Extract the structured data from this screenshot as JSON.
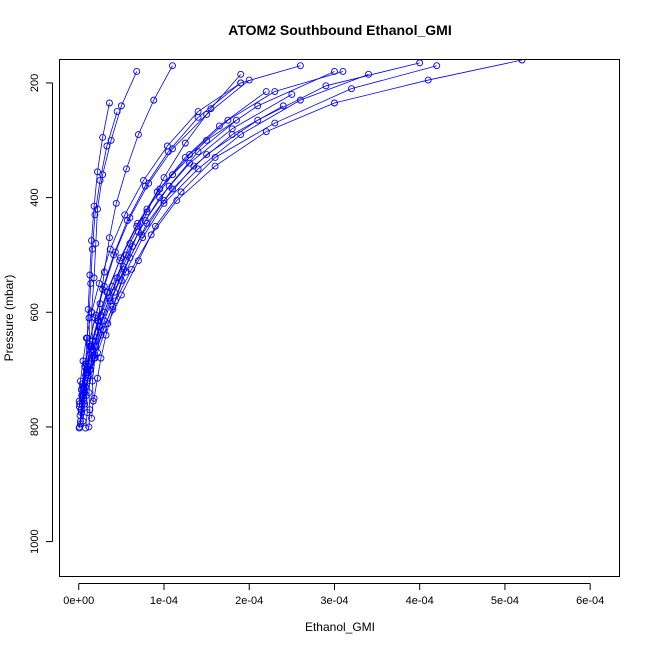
{
  "chart_data": {
    "type": "line",
    "title": "ATOM2 Southbound Ethanol_GMI",
    "xlabel": "Ethanol_GMI",
    "ylabel": "Pressure (mbar)",
    "xlim": [
      -2.2e-05,
      0.000635
    ],
    "ylim": [
      1060,
      160
    ],
    "y_reversed": true,
    "grid": false,
    "legend": "none",
    "color": "#0000ff",
    "marker": "open-circle",
    "x_ticks": [
      {
        "value": 0,
        "label": "0e+00"
      },
      {
        "value": 0.0001,
        "label": "1e-04"
      },
      {
        "value": 0.0002,
        "label": "2e-04"
      },
      {
        "value": 0.0003,
        "label": "3e-04"
      },
      {
        "value": 0.0004,
        "label": "4e-04"
      },
      {
        "value": 0.0005,
        "label": "5e-04"
      },
      {
        "value": 0.0006,
        "label": "6e-04"
      }
    ],
    "y_ticks": [
      {
        "value": 200,
        "label": "200"
      },
      {
        "value": 400,
        "label": "400"
      },
      {
        "value": 600,
        "label": "600"
      },
      {
        "value": 800,
        "label": "800"
      },
      {
        "value": 1000,
        "label": "1000"
      }
    ],
    "series": [
      {
        "x": [
          5e-07,
          3e-06,
          8e-06,
          1.4e-05,
          2e-05,
          3e-05,
          4.5e-05,
          6e-05,
          8e-05,
          0.00011,
          0.00015,
          0.00021,
          0.0003
        ],
        "y": [
          802,
          770,
          730,
          690,
          650,
          600,
          540,
          480,
          420,
          360,
          300,
          240,
          180
        ]
      },
      {
        "x": [
          1e-06,
          4e-06,
          1e-05,
          1.8e-05,
          2.6e-05,
          4e-05,
          5.5e-05,
          7.5e-05,
          0.0001,
          0.00014,
          0.00019,
          0.00026,
          0.00034
        ],
        "y": [
          800,
          760,
          720,
          680,
          640,
          590,
          530,
          470,
          410,
          350,
          290,
          230,
          185
        ]
      },
      {
        "x": [
          2e-06,
          6e-06,
          1.2e-05,
          2.2e-05,
          3.4e-05,
          5e-05,
          7e-05,
          9e-05,
          0.00012,
          0.00016,
          0.00023,
          0.00032,
          0.00042
        ],
        "y": [
          790,
          750,
          710,
          670,
          620,
          570,
          510,
          450,
          390,
          330,
          270,
          210,
          170
        ]
      },
      {
        "x": [
          1.5e-06,
          5e-06,
          9e-06,
          1.6e-05,
          2.4e-05,
          3.6e-05,
          5.2e-05,
          7e-05,
          9.5e-05,
          0.00013,
          0.00018,
          0.00025
        ],
        "y": [
          780,
          745,
          705,
          665,
          625,
          575,
          520,
          460,
          400,
          340,
          280,
          220
        ]
      },
      {
        "x": [
          3e-06,
          7e-06,
          1.3e-05,
          2e-05,
          3e-05,
          4.2e-05,
          6e-05,
          8e-05,
          0.00011,
          0.00015,
          0.00021,
          0.00029,
          0.0004
        ],
        "y": [
          775,
          740,
          700,
          660,
          615,
          565,
          505,
          445,
          385,
          325,
          265,
          205,
          165
        ]
      },
      {
        "x": [
          8e-07,
          3e-06,
          7e-06,
          1.2e-05,
          1.9e-05,
          2.8e-05,
          4.1e-05,
          5.7e-05,
          7.8e-05,
          0.000105,
          0.00014,
          0.00019
        ],
        "y": [
          765,
          735,
          695,
          655,
          610,
          560,
          500,
          440,
          380,
          320,
          260,
          200
        ]
      },
      {
        "x": [
          2e-06,
          6e-06,
          1.1e-05,
          1.9e-05,
          2.9e-05,
          4.3e-05,
          6.2e-05,
          8.5e-05,
          0.000115,
          0.00016,
          0.00022,
          0.0003,
          0.00041,
          0.00052
        ],
        "y": [
          795,
          755,
          715,
          675,
          630,
          580,
          525,
          465,
          405,
          345,
          285,
          235,
          195,
          160
        ]
      },
      {
        "x": [
          1e-06,
          4e-06,
          8e-06,
          1.3e-05,
          2e-05,
          3e-05,
          4.3e-05,
          6e-05,
          8.2e-05,
          0.00011,
          0.00015,
          0.0002
        ],
        "y": [
          760,
          725,
          690,
          650,
          605,
          555,
          495,
          435,
          375,
          315,
          255,
          195
        ]
      },
      {
        "x": [
          3.5e-06,
          8e-06,
          1.5e-05,
          2.5e-05,
          3.7e-05,
          5.3e-05,
          7.4e-05,
          0.0001,
          0.000135,
          0.00018,
          0.00024
        ],
        "y": [
          745,
          710,
          670,
          625,
          580,
          525,
          465,
          405,
          345,
          290,
          240
        ]
      },
      {
        "x": [
          5e-07,
          2e-06,
          5e-06,
          9e-06,
          1.5e-05,
          2.4e-05,
          3.7e-05,
          5.4e-05,
          7.6e-05,
          0.000104,
          0.00014,
          0.00019,
          0.00026
        ],
        "y": [
          755,
          720,
          685,
          645,
          600,
          550,
          490,
          430,
          370,
          310,
          250,
          200,
          170
        ]
      },
      {
        "x": [
          1.2e-05,
          1.3e-05,
          1.2e-05,
          1.4e-05,
          1.6e-05,
          1.5e-05,
          1.8e-05,
          2e-05,
          2.2e-05,
          2.8e-05,
          3.8e-05,
          5e-05,
          6.8e-05
        ],
        "y": [
          800,
          770,
          740,
          700,
          650,
          600,
          540,
          480,
          420,
          360,
          300,
          240,
          180
        ]
      },
      {
        "x": [
          8e-06,
          1e-05,
          9e-06,
          1.1e-05,
          1.3e-05,
          1.2e-05,
          1.4e-05,
          1.6e-05,
          1.9e-05,
          2.5e-05,
          3.3e-05,
          4.5e-05
        ],
        "y": [
          802,
          775,
          745,
          705,
          660,
          610,
          550,
          490,
          430,
          370,
          310,
          250
        ]
      },
      {
        "x": [
          1.5e-05,
          1.7e-05,
          1.6e-05,
          1.9e-05,
          2.2e-05,
          2.5e-05,
          3e-05,
          3.6e-05,
          4.4e-05,
          5.6e-05,
          7e-05,
          8.8e-05,
          0.00011
        ],
        "y": [
          785,
          755,
          720,
          680,
          635,
          585,
          530,
          470,
          410,
          350,
          290,
          230,
          170
        ]
      },
      {
        "x": [
          5e-06,
          7e-06,
          6e-06,
          8e-06,
          1e-05,
          1.1e-05,
          1.3e-05,
          1.5e-05,
          1.8e-05,
          2.2e-05,
          2.8e-05,
          3.6e-05
        ],
        "y": [
          790,
          760,
          730,
          690,
          645,
          595,
          535,
          475,
          415,
          355,
          295,
          235
        ]
      },
      {
        "x": [
          1.8e-05,
          2.2e-05,
          2.6e-05,
          3.2e-05,
          4e-05,
          5e-05,
          6.3e-05,
          8e-05,
          0.0001,
          0.000125,
          0.000155,
          0.00019
        ],
        "y": [
          750,
          715,
          680,
          640,
          595,
          545,
          485,
          425,
          365,
          305,
          245,
          185
        ]
      },
      {
        "x": [
          6e-06,
          9e-06,
          1.4e-05,
          2.2e-05,
          3.3e-05,
          4.8e-05,
          6.8e-05,
          9.2e-05,
          0.000125,
          0.000165,
          0.00022
        ],
        "y": [
          740,
          700,
          660,
          615,
          565,
          510,
          450,
          390,
          330,
          275,
          215
        ]
      },
      {
        "x": [
          2.5e-06,
          5e-06,
          9e-06,
          1.5e-05,
          2.3e-05,
          3.4e-05,
          4.9e-05,
          6.9e-05,
          9.5e-05,
          0.00013,
          0.000175,
          0.00023,
          0.00031
        ],
        "y": [
          770,
          735,
          700,
          660,
          615,
          565,
          505,
          445,
          385,
          325,
          265,
          215,
          180
        ]
      },
      {
        "x": [
          4.5e-06,
          9e-06,
          1.6e-05,
          2.6e-05,
          3.9e-05,
          5.6e-05,
          7.8e-05,
          0.000106,
          0.00014,
          0.000185
        ],
        "y": [
          730,
          690,
          650,
          605,
          555,
          500,
          440,
          380,
          320,
          265
        ]
      }
    ]
  }
}
